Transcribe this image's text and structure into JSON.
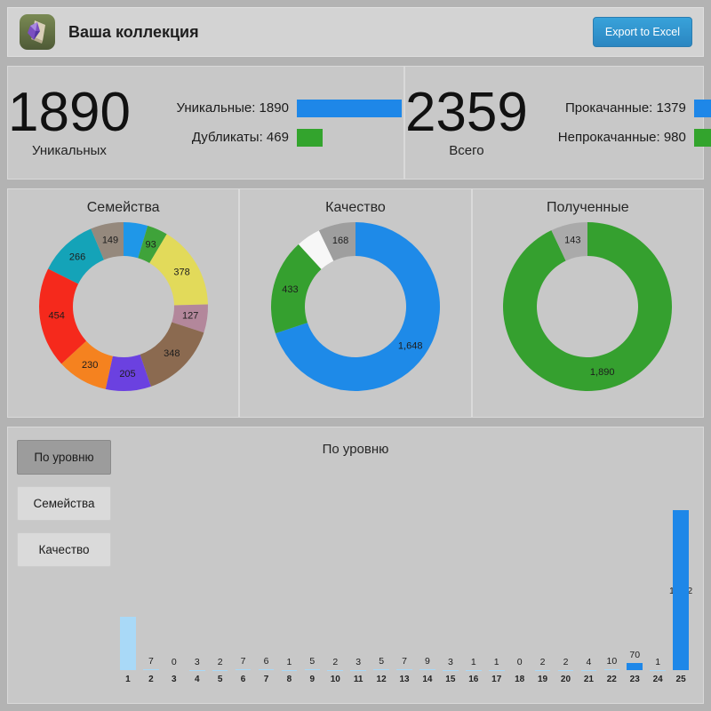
{
  "header": {
    "title": "Ваша коллекция",
    "export_button": "Export to Excel",
    "icon": "collection-book-icon"
  },
  "stats": [
    {
      "big_number": "1890",
      "big_label": "Уникальных",
      "rows": [
        {
          "label": "Уникальные: 1890",
          "value": 1890,
          "max": 1890,
          "color": "#1e87e8"
        },
        {
          "label": "Дубликаты: 469",
          "value": 469,
          "max": 1890,
          "color": "#33a42d"
        }
      ]
    },
    {
      "big_number": "2359",
      "big_label": "Всего",
      "rows": [
        {
          "label": "Прокачанные: 1379",
          "value": 1379,
          "max": 1379,
          "color": "#1e87e8"
        },
        {
          "label": "Непрокачанные: 980",
          "value": 980,
          "max": 1379,
          "color": "#33a42d"
        }
      ]
    }
  ],
  "bottom": {
    "tabs": [
      {
        "label": "По уровню",
        "active": true
      },
      {
        "label": "Семейства",
        "active": false
      },
      {
        "label": "Качество",
        "active": false
      }
    ]
  },
  "chart_data": [
    {
      "type": "pie",
      "subtype": "donut",
      "title": "Семейства",
      "legend_position": "none",
      "slices": [
        {
          "value": 109,
          "label": "",
          "color": "#1f97e8"
        },
        {
          "value": 93,
          "label": "93",
          "color": "#3fa33a"
        },
        {
          "value": 378,
          "label": "378",
          "color": "#e2da5a"
        },
        {
          "value": 127,
          "label": "127",
          "color": "#b3879b"
        },
        {
          "value": 348,
          "label": "348",
          "color": "#8b6a50"
        },
        {
          "value": 205,
          "label": "205",
          "color": "#6b41e0"
        },
        {
          "value": 230,
          "label": "230",
          "color": "#f5821f"
        },
        {
          "value": 454,
          "label": "454",
          "color": "#f5291c"
        },
        {
          "value": 266,
          "label": "266",
          "color": "#14a3b8"
        },
        {
          "value": 149,
          "label": "149",
          "color": "#95897d"
        }
      ]
    },
    {
      "type": "pie",
      "subtype": "donut",
      "title": "Качество",
      "legend_position": "none",
      "slices": [
        {
          "value": 1648,
          "label": "1,648",
          "color": "#1e8ae8"
        },
        {
          "value": 433,
          "label": "433",
          "color": "#35a02f"
        },
        {
          "value": 110,
          "label": "",
          "color": "#f7f7f7"
        },
        {
          "value": 168,
          "label": "168",
          "color": "#9e9e9e"
        }
      ]
    },
    {
      "type": "pie",
      "subtype": "donut",
      "title": "Полученные",
      "legend_position": "none",
      "slices": [
        {
          "value": 1890,
          "label": "1,890",
          "color": "#35a02f"
        },
        {
          "value": 143,
          "label": "143",
          "color": "#aaaaaa"
        }
      ]
    },
    {
      "type": "bar",
      "title": "По уровню",
      "xlabel": "",
      "ylabel": "",
      "ylim": [
        0,
        1632
      ],
      "grid": false,
      "legend_position": "none",
      "categories": [
        "1",
        "2",
        "3",
        "4",
        "5",
        "6",
        "7",
        "8",
        "9",
        "10",
        "11",
        "12",
        "13",
        "14",
        "15",
        "16",
        "17",
        "18",
        "19",
        "20",
        "21",
        "22",
        "23",
        "24",
        "25"
      ],
      "values": [
        542,
        7,
        0,
        3,
        2,
        7,
        6,
        1,
        5,
        2,
        3,
        5,
        7,
        9,
        3,
        1,
        1,
        0,
        2,
        2,
        4,
        10,
        70,
        1,
        1632
      ],
      "bar_colors": [
        "#a9d9f7",
        "#a9d9f7",
        "#a9d9f7",
        "#a9d9f7",
        "#a9d9f7",
        "#a9d9f7",
        "#a9d9f7",
        "#a9d9f7",
        "#a9d9f7",
        "#a9d9f7",
        "#a9d9f7",
        "#a9d9f7",
        "#a9d9f7",
        "#a9d9f7",
        "#a9d9f7",
        "#a9d9f7",
        "#a9d9f7",
        "#a9d9f7",
        "#a9d9f7",
        "#a9d9f7",
        "#a9d9f7",
        "#a9d9f7",
        "#1e87e8",
        "#a9d9f7",
        "#1e87e8"
      ]
    }
  ]
}
